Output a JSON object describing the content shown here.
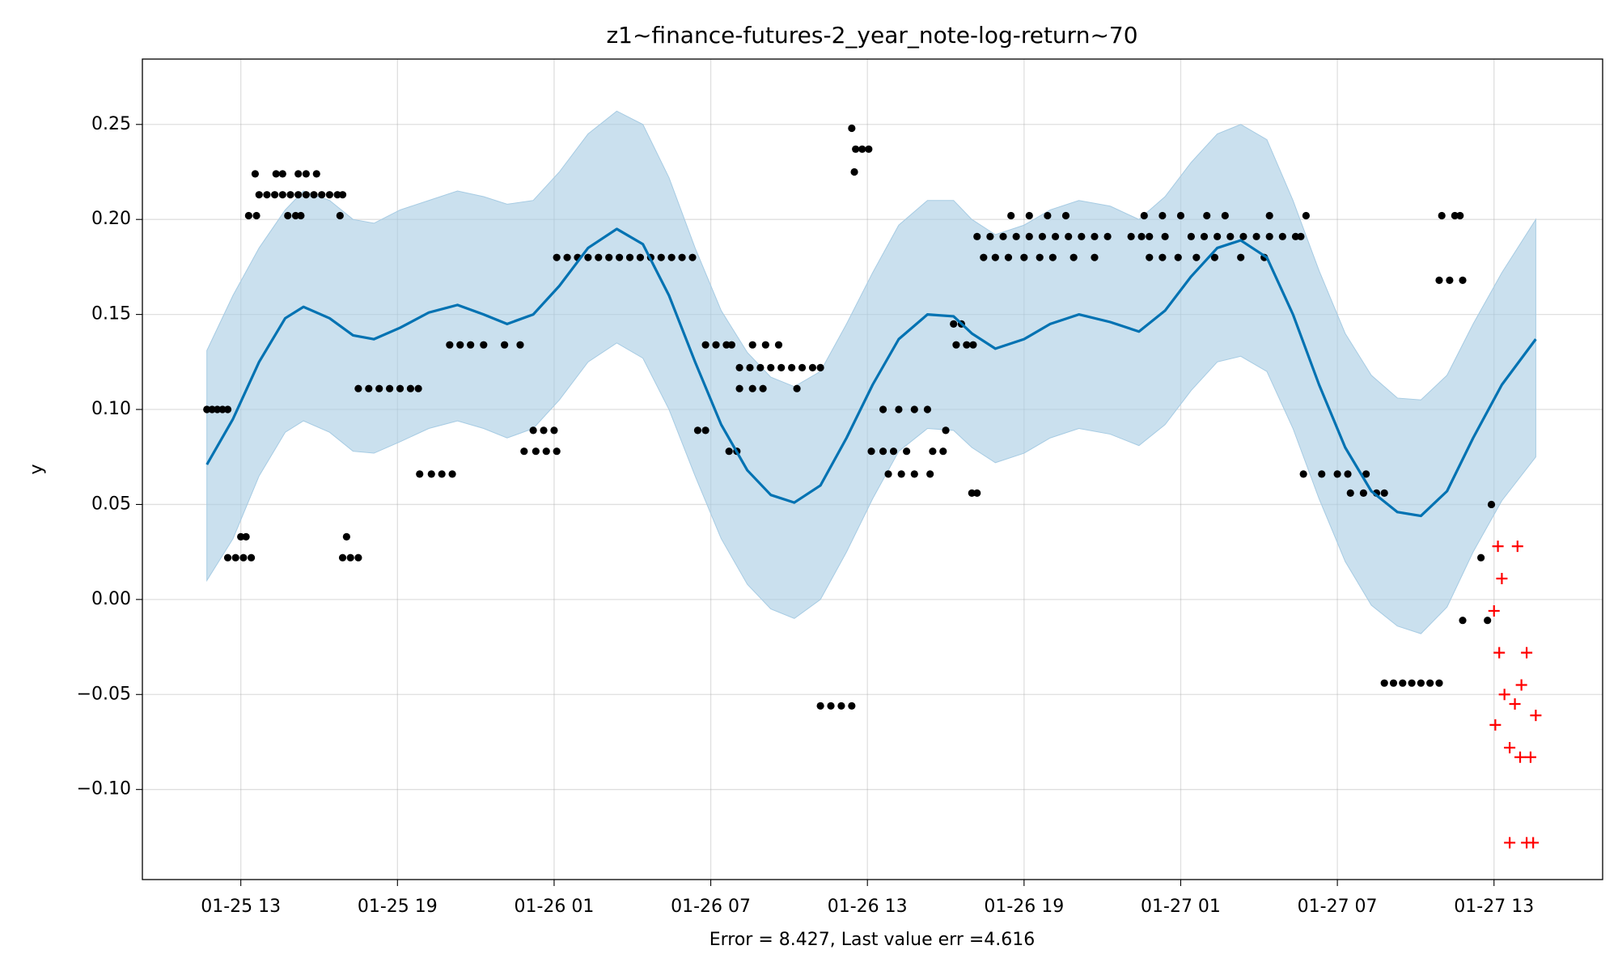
{
  "chart_data": {
    "type": "forecast",
    "title": "z1~finance-futures-2_year_note-log-return~70",
    "xlabel": "Error = 8.427, Last value err =4.616",
    "ylabel": "y",
    "grid": true,
    "xlim": [
      9.23,
      65.16
    ],
    "ylim": [
      -0.1474,
      0.2844
    ],
    "xticks": [
      {
        "value": 13,
        "label": "01-25 13"
      },
      {
        "value": 19,
        "label": "01-25 19"
      },
      {
        "value": 25,
        "label": "01-26 01"
      },
      {
        "value": 31,
        "label": "01-26 07"
      },
      {
        "value": 37,
        "label": "01-26 13"
      },
      {
        "value": 43,
        "label": "01-26 19"
      },
      {
        "value": 49,
        "label": "01-27 01"
      },
      {
        "value": 55,
        "label": "01-27 07"
      },
      {
        "value": 61,
        "label": "01-27 13"
      }
    ],
    "yticks": [
      {
        "value": -0.1,
        "label": "−0.10"
      },
      {
        "value": -0.05,
        "label": "−0.05"
      },
      {
        "value": 0,
        "label": "0.00"
      },
      0.05,
      {
        "value": 0.1,
        "label": "0.10"
      },
      0.15,
      {
        "value": 0.2,
        "label": "0.20"
      },
      0.25
    ],
    "forecast": {
      "color": "#0072b2",
      "band_color": "#a6cbe3",
      "x": [
        11.7,
        12.7,
        13.7,
        14.7,
        15.4,
        16.4,
        17.3,
        18.1,
        19.1,
        20.2,
        21.3,
        22.3,
        23.2,
        24.2,
        25.2,
        26.3,
        27.4,
        28.4,
        29.4,
        30.4,
        31.4,
        32.4,
        33.3,
        34.2,
        35.2,
        36.2,
        37.2,
        38.2,
        39.3,
        40.3,
        41.0,
        41.9,
        43.0,
        44.0,
        45.1,
        46.3,
        47.4,
        48.4,
        49.4,
        50.4,
        51.3,
        52.3,
        53.3,
        54.3,
        55.3,
        56.3,
        57.3,
        58.2,
        59.2,
        60.2,
        61.3,
        62.6
      ],
      "y": [
        0.071,
        0.095,
        0.125,
        0.148,
        0.154,
        0.148,
        0.139,
        0.137,
        0.143,
        0.151,
        0.155,
        0.15,
        0.145,
        0.15,
        0.165,
        0.185,
        0.195,
        0.187,
        0.16,
        0.125,
        0.092,
        0.068,
        0.055,
        0.051,
        0.06,
        0.085,
        0.113,
        0.137,
        0.15,
        0.149,
        0.14,
        0.132,
        0.137,
        0.145,
        0.15,
        0.146,
        0.141,
        0.152,
        0.17,
        0.185,
        0.189,
        0.18,
        0.15,
        0.113,
        0.08,
        0.057,
        0.046,
        0.044,
        0.057,
        0.085,
        0.113,
        0.137
      ],
      "upper": [
        0.131,
        0.16,
        0.185,
        0.205,
        0.215,
        0.21,
        0.2,
        0.198,
        0.205,
        0.21,
        0.215,
        0.212,
        0.208,
        0.21,
        0.225,
        0.245,
        0.257,
        0.25,
        0.222,
        0.185,
        0.152,
        0.13,
        0.117,
        0.112,
        0.12,
        0.145,
        0.172,
        0.197,
        0.21,
        0.21,
        0.2,
        0.192,
        0.197,
        0.205,
        0.21,
        0.207,
        0.2,
        0.212,
        0.23,
        0.245,
        0.25,
        0.242,
        0.21,
        0.173,
        0.14,
        0.118,
        0.106,
        0.105,
        0.118,
        0.145,
        0.172,
        0.2
      ],
      "lower": [
        0.01,
        0.032,
        0.065,
        0.088,
        0.094,
        0.088,
        0.078,
        0.077,
        0.083,
        0.09,
        0.094,
        0.09,
        0.085,
        0.09,
        0.105,
        0.125,
        0.135,
        0.127,
        0.1,
        0.065,
        0.032,
        0.008,
        -0.005,
        -0.01,
        0,
        0.025,
        0.053,
        0.078,
        0.09,
        0.089,
        0.08,
        0.072,
        0.077,
        0.085,
        0.09,
        0.087,
        0.081,
        0.092,
        0.11,
        0.125,
        0.128,
        0.12,
        0.09,
        0.053,
        0.02,
        -0.003,
        -0.014,
        -0.018,
        -0.004,
        0.025,
        0.052,
        0.075
      ]
    },
    "observed": {
      "color": "#000000",
      "x": [
        11.7,
        11.9,
        12.1,
        12.3,
        12.5,
        12.5,
        12.8,
        13.1,
        13.4,
        13.0,
        13.2,
        13.3,
        13.6,
        13.55,
        13.7,
        14.0,
        14.3,
        14.6,
        14.9,
        15.2,
        15.5,
        15.8,
        16.1,
        16.4,
        16.7,
        16.9,
        14.35,
        14.6,
        15.2,
        15.5,
        15.9,
        14.8,
        15.1,
        15.3,
        16.8,
        16.9,
        17.2,
        17.5,
        17.05,
        17.5,
        17.9,
        18.3,
        18.7,
        19.1,
        19.5,
        19.8,
        19.85,
        20.3,
        20.7,
        21.1,
        21.0,
        21.4,
        21.8,
        22.3,
        23.1,
        23.7,
        23.85,
        24.3,
        24.7,
        25.1,
        24.2,
        24.6,
        25.0,
        25.1,
        25.5,
        25.9,
        26.3,
        26.7,
        27.1,
        27.5,
        27.9,
        28.3,
        28.7,
        29.1,
        29.5,
        29.9,
        30.3,
        30.5,
        30.8,
        30.8,
        31.2,
        31.6,
        31.8,
        31.7,
        32.0,
        32.1,
        32.6,
        33.0,
        34.3,
        32.1,
        32.5,
        32.9,
        33.3,
        33.7,
        34.1,
        34.5,
        34.9,
        35.2,
        32.6,
        33.1,
        33.6,
        35.2,
        35.6,
        36.0,
        36.4,
        36.4,
        36.5,
        36.55,
        36.8,
        37.05,
        37.15,
        37.6,
        38.0,
        38.5,
        39.5,
        39.9,
        37.8,
        38.3,
        38.8,
        39.4,
        37.6,
        38.2,
        38.8,
        39.3,
        40.0,
        40.3,
        40.6,
        40.4,
        40.8,
        41.05,
        41.0,
        41.2,
        41.2,
        41.7,
        42.2,
        42.7,
        43.2,
        43.7,
        44.2,
        44.7,
        45.2,
        45.7,
        46.2,
        41.45,
        41.9,
        42.4,
        43.0,
        43.6,
        44.1,
        44.9,
        45.7,
        42.5,
        43.2,
        43.9,
        44.6,
        47.1,
        47.5,
        47.8,
        48.4,
        47.6,
        48.3,
        47.8,
        48.3,
        49.4,
        49.9,
        50.4,
        50.9,
        51.4,
        51.9,
        52.4,
        52.9,
        53.4,
        53.6,
        49.0,
        50.0,
        50.7,
        52.4,
        53.8,
        48.9,
        49.6,
        50.3,
        51.3,
        52.2,
        53.7,
        54.4,
        55.0,
        55.4,
        56.1,
        55.5,
        56.0,
        56.5,
        56.8,
        56.8,
        57.15,
        57.5,
        57.85,
        58.2,
        58.55,
        58.9,
        58.9,
        59.3,
        59.8,
        59.0,
        59.5,
        59.7,
        59.8,
        60.5,
        60.75,
        60.9
      ],
      "y": [
        0.1,
        0.1,
        0.1,
        0.1,
        0.1,
        0.022,
        0.022,
        0.022,
        0.022,
        0.033,
        0.033,
        0.202,
        0.202,
        0.224,
        0.213,
        0.213,
        0.213,
        0.213,
        0.213,
        0.213,
        0.213,
        0.213,
        0.213,
        0.213,
        0.213,
        0.213,
        0.224,
        0.224,
        0.224,
        0.224,
        0.224,
        0.202,
        0.202,
        0.202,
        0.202,
        0.022,
        0.022,
        0.022,
        0.033,
        0.111,
        0.111,
        0.111,
        0.111,
        0.111,
        0.111,
        0.111,
        0.066,
        0.066,
        0.066,
        0.066,
        0.134,
        0.134,
        0.134,
        0.134,
        0.134,
        0.134,
        0.078,
        0.078,
        0.078,
        0.078,
        0.089,
        0.089,
        0.089,
        0.18,
        0.18,
        0.18,
        0.18,
        0.18,
        0.18,
        0.18,
        0.18,
        0.18,
        0.18,
        0.18,
        0.18,
        0.18,
        0.18,
        0.089,
        0.089,
        0.134,
        0.134,
        0.134,
        0.134,
        0.078,
        0.078,
        0.111,
        0.111,
        0.111,
        0.111,
        0.122,
        0.122,
        0.122,
        0.122,
        0.122,
        0.122,
        0.122,
        0.122,
        0.122,
        0.134,
        0.134,
        0.134,
        -0.056,
        -0.056,
        -0.056,
        -0.056,
        0.248,
        0.225,
        0.237,
        0.237,
        0.237,
        0.078,
        0.078,
        0.078,
        0.078,
        0.078,
        0.078,
        0.066,
        0.066,
        0.066,
        0.066,
        0.1,
        0.1,
        0.1,
        0.1,
        0.089,
        0.145,
        0.145,
        0.134,
        0.134,
        0.134,
        0.056,
        0.056,
        0.191,
        0.191,
        0.191,
        0.191,
        0.191,
        0.191,
        0.191,
        0.191,
        0.191,
        0.191,
        0.191,
        0.18,
        0.18,
        0.18,
        0.18,
        0.18,
        0.18,
        0.18,
        0.18,
        0.202,
        0.202,
        0.202,
        0.202,
        0.191,
        0.191,
        0.191,
        0.191,
        0.202,
        0.202,
        0.18,
        0.18,
        0.191,
        0.191,
        0.191,
        0.191,
        0.191,
        0.191,
        0.191,
        0.191,
        0.191,
        0.191,
        0.202,
        0.202,
        0.202,
        0.202,
        0.202,
        0.18,
        0.18,
        0.18,
        0.18,
        0.18,
        0.066,
        0.066,
        0.066,
        0.066,
        0.066,
        0.056,
        0.056,
        0.056,
        0.056,
        -0.044,
        -0.044,
        -0.044,
        -0.044,
        -0.044,
        -0.044,
        -0.044,
        0.168,
        0.168,
        0.168,
        0.202,
        0.202,
        0.202,
        -0.011,
        0.022,
        -0.011,
        0.05
      ]
    },
    "actual": {
      "color": "#ff0000",
      "x": [
        61.15,
        61.9,
        61.3,
        61.0,
        61.2,
        62.25,
        61.4,
        62.05,
        61.8,
        62.6,
        61.05,
        61.6,
        62.0,
        62.4,
        61.6,
        62.25,
        62.5
      ],
      "y": [
        0.028,
        0.028,
        0.011,
        -0.006,
        -0.028,
        -0.028,
        -0.05,
        -0.045,
        -0.055,
        -0.061,
        -0.066,
        -0.078,
        -0.083,
        -0.083,
        -0.128,
        -0.128,
        -0.128
      ]
    }
  }
}
